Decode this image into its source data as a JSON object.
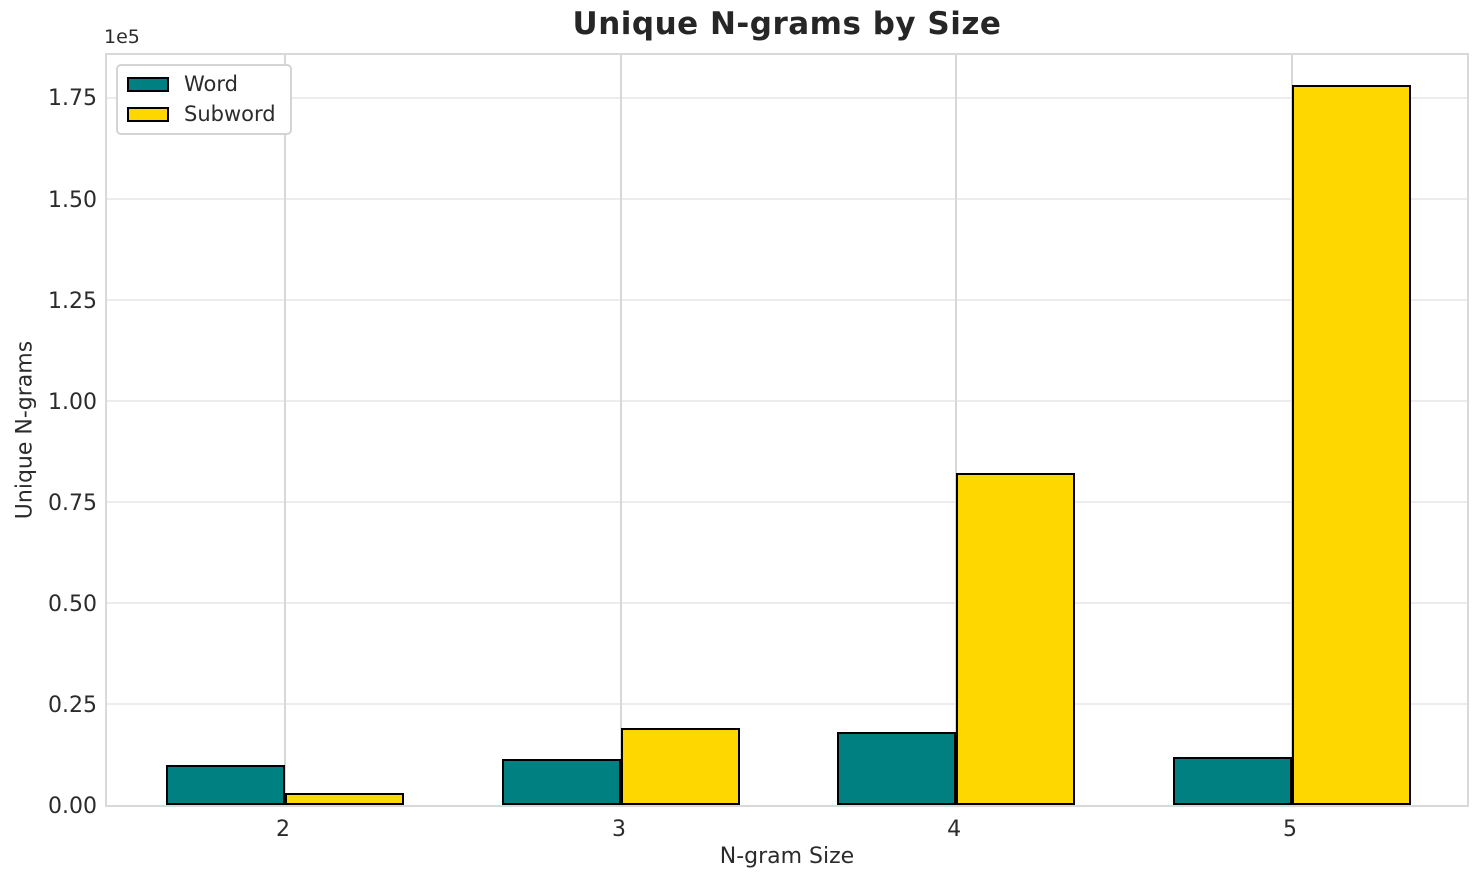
{
  "title": "Unique N-grams by Size",
  "axes": {
    "xlabel": "N-gram Size",
    "ylabel": "Unique N-grams",
    "y_offset_text": "1e5"
  },
  "legend": {
    "position": "upper-left",
    "items": [
      {
        "label": "Word",
        "color": "#008080"
      },
      {
        "label": "Subword",
        "color": "#FFD700"
      }
    ]
  },
  "colors": {
    "word_fill": "#008080",
    "subword_fill": "#FFD700",
    "bar_edge": "#000000",
    "grid_horizontal": "#ececec",
    "grid_vertical": "#d7d7d7",
    "plot_border": "#d9d9d9",
    "text": "#2b2b2b",
    "background": "#ffffff"
  },
  "chart_data": {
    "type": "bar",
    "title": "Unique N-grams by Size",
    "xlabel": "N-gram Size",
    "ylabel": "Unique N-grams",
    "categories": [
      "2",
      "3",
      "4",
      "5"
    ],
    "series": [
      {
        "name": "Word",
        "color": "#008080",
        "values": [
          10000,
          11500,
          18000,
          12000
        ]
      },
      {
        "name": "Subword",
        "color": "#FFD700",
        "values": [
          3000,
          19000,
          82000,
          178000
        ]
      }
    ],
    "ylim": [
      0,
      186500
    ],
    "yticks": [
      0,
      25000,
      50000,
      75000,
      100000,
      125000,
      150000,
      175000
    ],
    "ytick_labels": [
      "0.00",
      "0.25",
      "0.50",
      "0.75",
      "1.00",
      "1.25",
      "1.50",
      "1.75"
    ],
    "y_offset_text": "1e5",
    "grid": true,
    "legend_position": "upper left"
  }
}
